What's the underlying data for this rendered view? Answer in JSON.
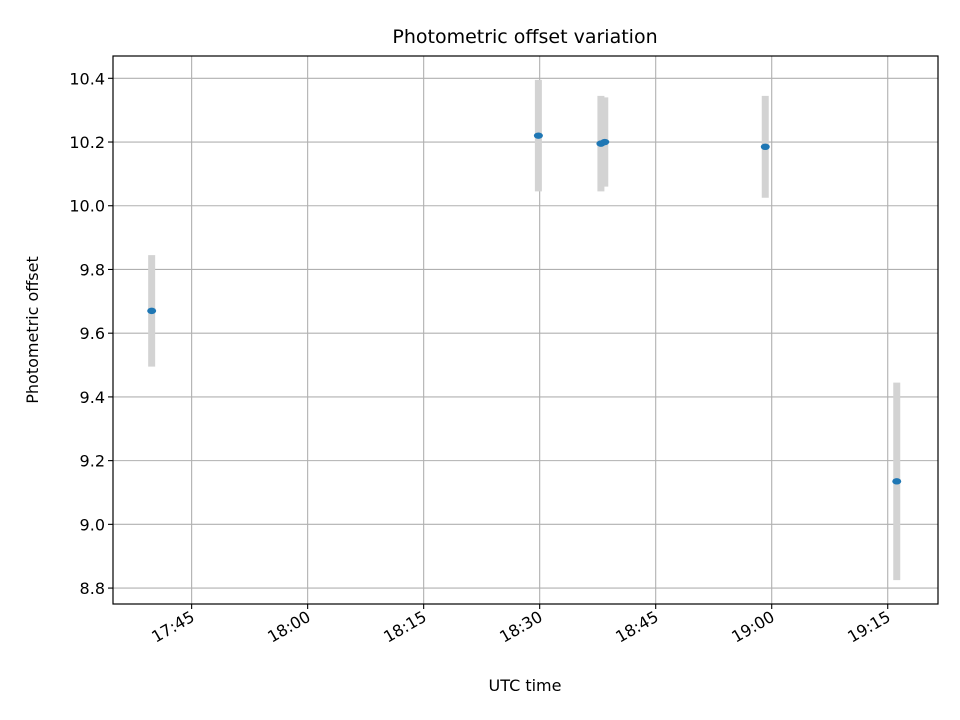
{
  "chart_data": {
    "type": "scatter",
    "title": "Photometric offset variation",
    "xlabel": "UTC time",
    "ylabel": "Photometric offset",
    "x_ticks": [
      "17:45",
      "18:00",
      "18:15",
      "18:30",
      "18:45",
      "19:00",
      "19:15"
    ],
    "y_ticks": [
      "8.8",
      "9.0",
      "9.2",
      "9.4",
      "9.6",
      "9.8",
      "10.0",
      "10.2",
      "10.4"
    ],
    "xlim": [
      "17:34:50",
      "19:21:30"
    ],
    "ylim": [
      8.75,
      10.47
    ],
    "grid": true,
    "error_bar_color": "#d3d3d3",
    "marker_color": "#1f77b4",
    "points": [
      {
        "x": "17:39:50",
        "y": 9.67,
        "err": 0.175
      },
      {
        "x": "18:29:50",
        "y": 10.22,
        "err": 0.175
      },
      {
        "x": "18:37:55",
        "y": 10.195,
        "err": 0.15
      },
      {
        "x": "18:38:25",
        "y": 10.2,
        "err": 0.14
      },
      {
        "x": "18:59:10",
        "y": 10.185,
        "err": 0.16
      },
      {
        "x": "19:16:10",
        "y": 9.135,
        "err": 0.31
      }
    ]
  }
}
